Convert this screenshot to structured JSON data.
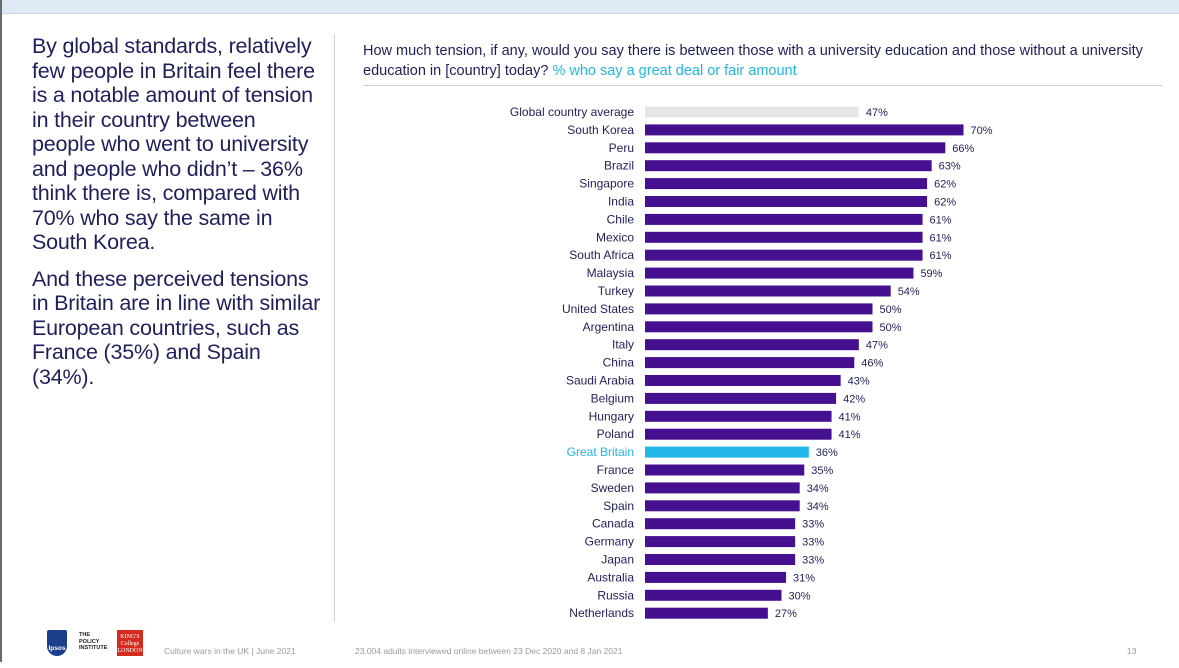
{
  "left_panel": {
    "paragraph1": "By global standards, relatively few people in Britain feel there is a notable amount of tension in their country between people who went to university and people who didn’t – 36% think there is, compared with 70% who say the same in South Korea.",
    "paragraph2": "And these perceived tensions in Britain are in line with similar European countries, such as France (35%) and Spain (34%)."
  },
  "colors": {
    "bar_default": "#44108f",
    "bar_highlight": "#20b6e6",
    "bar_average": "#e6e6e6",
    "text": "#1f1f5c"
  },
  "chart_data": {
    "type": "bar",
    "orientation": "horizontal",
    "title": "How much tension, if any, would you say there is between those with a university education and those without a university education in [country] today?",
    "subtitle": "% who say a great deal or fair amount",
    "unit": "%",
    "xlim": [
      0,
      70
    ],
    "grid": false,
    "categories": [
      "Global country average",
      "South Korea",
      "Peru",
      "Brazil",
      "Singapore",
      "India",
      "Chile",
      "Mexico",
      "South Africa",
      "Malaysia",
      "Turkey",
      "United States",
      "Argentina",
      "Italy",
      "China",
      "Saudi Arabia",
      "Belgium",
      "Hungary",
      "Poland",
      "Great Britain",
      "France",
      "Sweden",
      "Spain",
      "Canada",
      "Germany",
      "Japan",
      "Australia",
      "Russia",
      "Netherlands"
    ],
    "values": [
      47,
      70,
      66,
      63,
      62,
      62,
      61,
      61,
      61,
      59,
      54,
      50,
      50,
      47,
      46,
      43,
      42,
      41,
      41,
      36,
      35,
      34,
      34,
      33,
      33,
      33,
      31,
      30,
      27
    ],
    "value_labels": [
      "47%",
      "70%",
      "66%",
      "63%",
      "62%",
      "62%",
      "61%",
      "61%",
      "61%",
      "59%",
      "54%",
      "50%",
      "50%",
      "47%",
      "46%",
      "43%",
      "42%",
      "41%",
      "41%",
      "36%",
      "35%",
      "34%",
      "34%",
      "33%",
      "33%",
      "33%",
      "31%",
      "30%",
      "27%"
    ],
    "average_category": "Global country average",
    "highlight_category": "Great Britain"
  },
  "footer": {
    "report": "Culture wars in the UK | June 2021",
    "method": "23,004 adults interviewed online between 23 Dec 2020 and 8 Jan 2021",
    "page": "13",
    "logo_ipsos": "Ipsos",
    "logo_policy": "THE POLICY INSTITUTE",
    "logo_kings": "KING'S College LONDON"
  }
}
